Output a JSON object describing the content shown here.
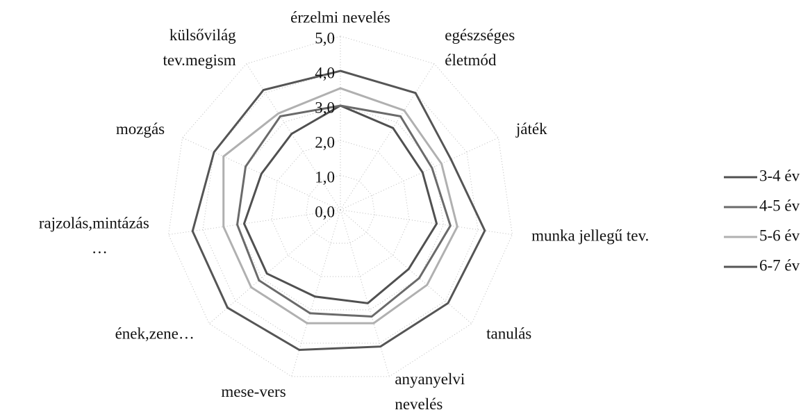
{
  "chart_data": {
    "type": "radar",
    "categories": [
      [
        "érzelmi nevelés"
      ],
      [
        "egészséges",
        "életmód"
      ],
      [
        "játék"
      ],
      [
        "munka jellegű tev."
      ],
      [
        "tanulás"
      ],
      [
        "anyanyelvi",
        "nevelés"
      ],
      [
        "mese-vers"
      ],
      [
        "ének,zene…"
      ],
      [
        "rajzolás,mintázás",
        "…"
      ],
      [
        "mozgás"
      ],
      [
        "külsővilág",
        "tev.megism"
      ]
    ],
    "series": [
      {
        "name": "3-4 év",
        "color": "#505050",
        "values": [
          3.0,
          2.8,
          2.6,
          2.8,
          2.6,
          2.8,
          2.6,
          2.8,
          2.8,
          2.5,
          2.6
        ]
      },
      {
        "name": "4-5 év",
        "color": "#6a6a6a",
        "values": [
          3.0,
          3.2,
          2.9,
          3.2,
          3.0,
          3.2,
          3.1,
          3.1,
          3.0,
          3.0,
          3.2
        ]
      },
      {
        "name": "5-6 év",
        "color": "#b0b0b0",
        "values": [
          3.5,
          3.4,
          3.2,
          3.4,
          3.3,
          3.4,
          3.4,
          3.4,
          3.4,
          3.7,
          3.3
        ]
      },
      {
        "name": "6-7 év",
        "color": "#555555",
        "values": [
          4.0,
          4.0,
          3.5,
          4.2,
          4.1,
          4.1,
          4.2,
          4.3,
          4.3,
          4.0,
          4.1
        ]
      }
    ],
    "ylim": [
      0,
      5
    ],
    "yticks": [
      {
        "value": 0,
        "label": "0,0"
      },
      {
        "value": 1,
        "label": "1,0"
      },
      {
        "value": 2,
        "label": "2,0"
      },
      {
        "value": 3,
        "label": "3,0"
      },
      {
        "value": 4,
        "label": "4,0"
      },
      {
        "value": 5,
        "label": "5,0"
      }
    ],
    "grid": true,
    "legend": "right"
  }
}
